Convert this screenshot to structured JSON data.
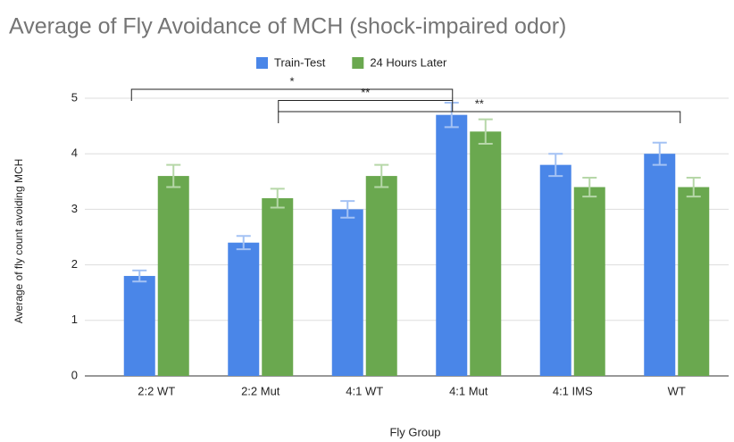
{
  "chart_data": {
    "type": "bar",
    "title": "Average of Fly Avoidance of MCH (shock-impaired odor)",
    "x_label": "Fly Group",
    "y_label": "Average of fly count avoiding MCH",
    "categories": [
      "2:2 WT",
      "2:2 Mut",
      "4:1 WT",
      "4:1 Mut",
      "4:1 IMS",
      "WT"
    ],
    "series": [
      {
        "name": "Train-Test",
        "color": "#4a86e8",
        "error_color": "#a4c2f4",
        "values": [
          1.8,
          2.4,
          3.0,
          4.7,
          3.8,
          4.0
        ],
        "errors": [
          0.1,
          0.12,
          0.15,
          0.22,
          0.2,
          0.2
        ]
      },
      {
        "name": "24 Hours Later",
        "color": "#6aa84f",
        "error_color": "#b6d7a8",
        "values": [
          3.6,
          3.2,
          3.6,
          4.4,
          3.4,
          3.4
        ],
        "errors": [
          0.2,
          0.17,
          0.2,
          0.22,
          0.17,
          0.17
        ]
      }
    ],
    "ylim": [
      0,
      5
    ],
    "yticks": [
      0,
      1,
      2,
      3,
      4,
      5
    ],
    "grid": true,
    "legend": "top",
    "annotations": [
      {
        "label": "*",
        "from": "2:2 WT",
        "to": "4:1 Mut"
      },
      {
        "label": "**",
        "from": "2:2 Mut",
        "to": "4:1 Mut"
      },
      {
        "label": "**",
        "from": "2:2 Mut",
        "to": "WT"
      }
    ]
  }
}
